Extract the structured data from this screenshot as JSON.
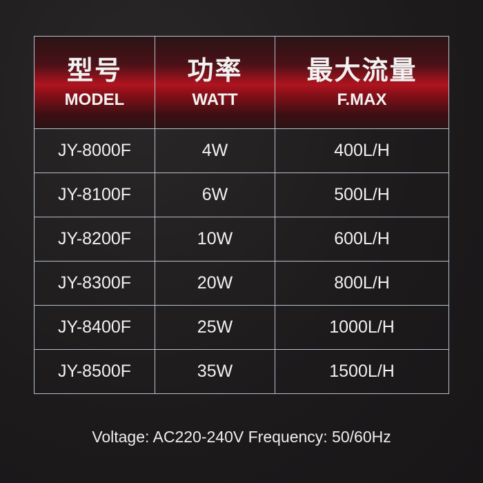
{
  "header": [
    {
      "cn": "型号",
      "en": "MODEL"
    },
    {
      "cn": "功率",
      "en": "WATT"
    },
    {
      "cn": "最大流量",
      "en": "F.MAX"
    }
  ],
  "rows": [
    [
      "JY-8000F",
      "4W",
      "400L/H"
    ],
    [
      "JY-8100F",
      "6W",
      "500L/H"
    ],
    [
      "JY-8200F",
      "10W",
      "600L/H"
    ],
    [
      "JY-8300F",
      "20W",
      "800L/H"
    ],
    [
      "JY-8400F",
      "25W",
      "1000L/H"
    ],
    [
      "JY-8500F",
      "35W",
      "1500L/H"
    ]
  ],
  "footer": "Voltage: AC220-240V Frequency: 50/60Hz",
  "colors": {
    "header_red": "#b0141f",
    "background": "#1f1d1e",
    "grid": "#b9c3cf"
  }
}
